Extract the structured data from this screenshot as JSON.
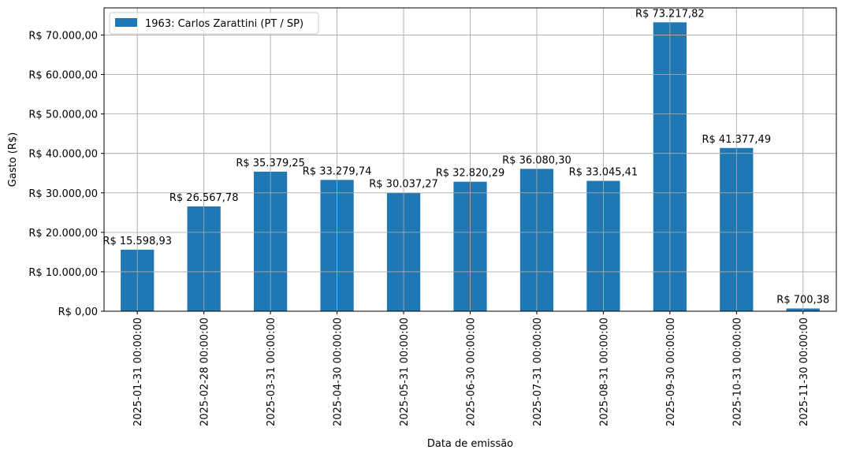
{
  "chart_data": {
    "type": "bar",
    "categories": [
      "2025-01-31 00:00:00",
      "2025-02-28 00:00:00",
      "2025-03-31 00:00:00",
      "2025-04-30 00:00:00",
      "2025-05-31 00:00:00",
      "2025-06-30 00:00:00",
      "2025-07-31 00:00:00",
      "2025-08-31 00:00:00",
      "2025-09-30 00:00:00",
      "2025-10-31 00:00:00",
      "2025-11-30 00:00:00"
    ],
    "series": [
      {
        "name": "1963: Carlos Zarattini (PT / SP)",
        "values": [
          15598.93,
          26567.78,
          35379.25,
          33279.74,
          30037.27,
          32820.29,
          36080.3,
          33045.41,
          73217.82,
          41377.49,
          700.38
        ],
        "data_labels": [
          "R$ 15.598,93",
          "R$ 26.567,78",
          "R$ 35.379,25",
          "R$ 33.279,74",
          "R$ 30.037,27",
          "R$ 32.820,29",
          "R$ 36.080,30",
          "R$ 33.045,41",
          "R$ 73.217,82",
          "R$ 41.377,49",
          "R$ 700,38"
        ],
        "color": "#1f77b4"
      }
    ],
    "xlabel": "Data de emissão",
    "ylabel": "Gasto (R$)",
    "ylim": [
      0,
      76879.71
    ],
    "yticks": [
      0,
      10000,
      20000,
      30000,
      40000,
      50000,
      60000,
      70000
    ],
    "ytick_labels": [
      "R$ 0,00",
      "R$ 10.000,00",
      "R$ 20.000,00",
      "R$ 30.000,00",
      "R$ 40.000,00",
      "R$ 50.000,00",
      "R$ 60.000,00",
      "R$ 70.000,00"
    ],
    "grid": true,
    "legend_position": "top-left"
  }
}
